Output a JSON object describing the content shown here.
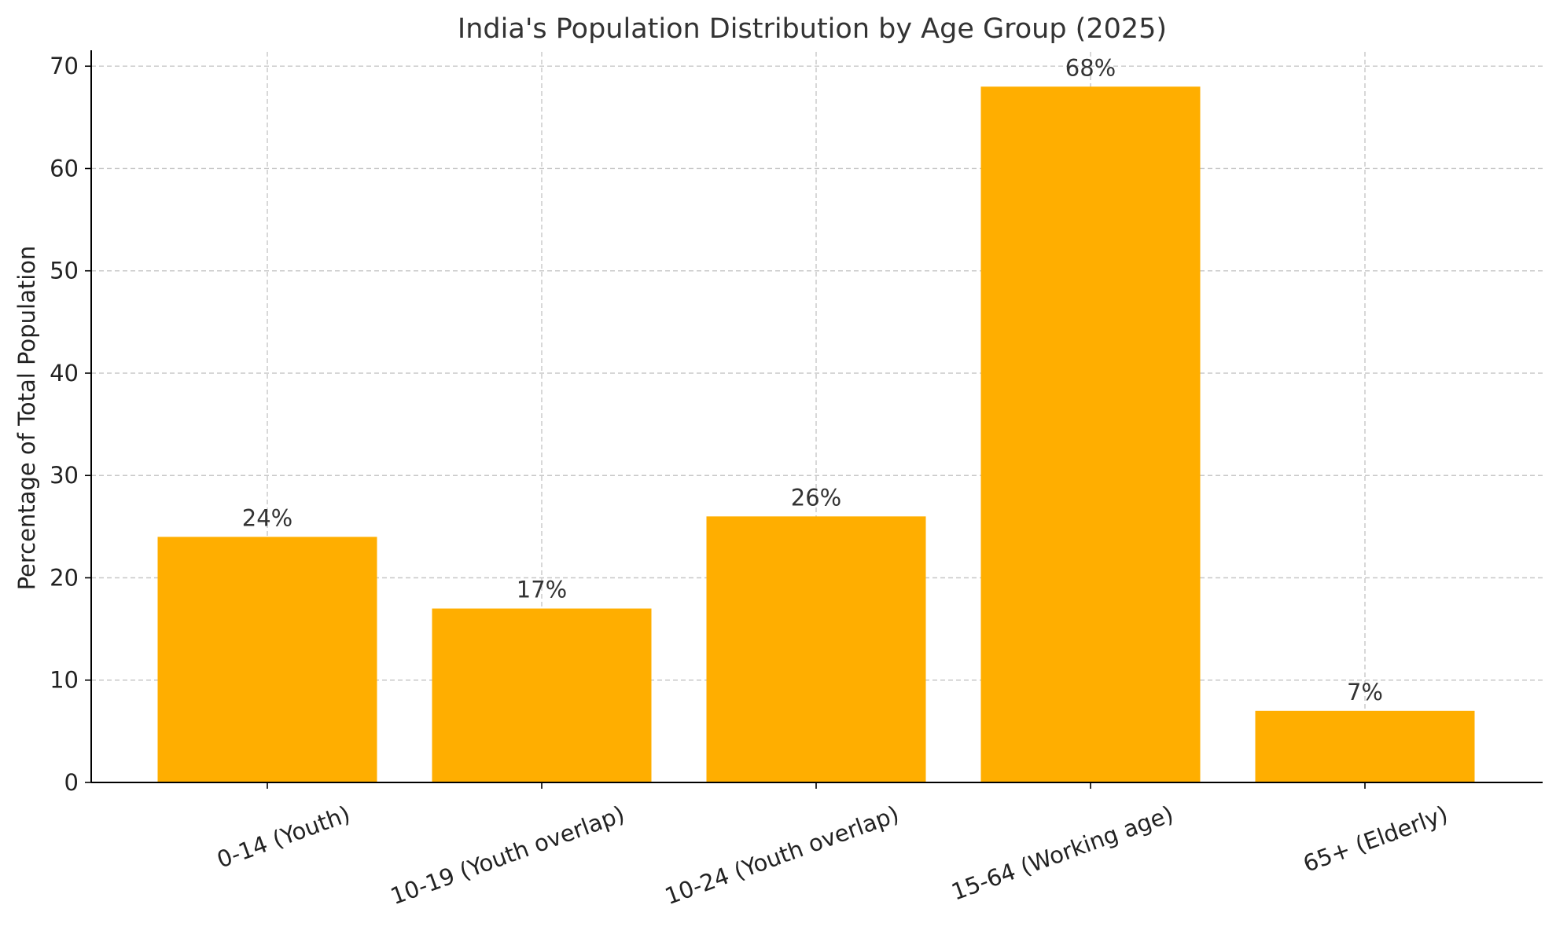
{
  "chart_data": {
    "type": "bar",
    "title": "India's Population Distribution by Age Group (2025)",
    "xlabel": "",
    "ylabel": "Percentage of Total Population",
    "categories": [
      "0-14 (Youth)",
      "10-19 (Youth overlap)",
      "10-24 (Youth overlap)",
      "15-64 (Working age)",
      "65+ (Elderly)"
    ],
    "values": [
      24,
      17,
      26,
      68,
      7
    ],
    "data_labels": [
      "24%",
      "17%",
      "26%",
      "68%",
      "7%"
    ],
    "ylim": [
      0,
      71.4
    ],
    "yticks": [
      0,
      10,
      20,
      30,
      40,
      50,
      60,
      70
    ],
    "grid": true,
    "bar_color": "#FFAE00"
  }
}
